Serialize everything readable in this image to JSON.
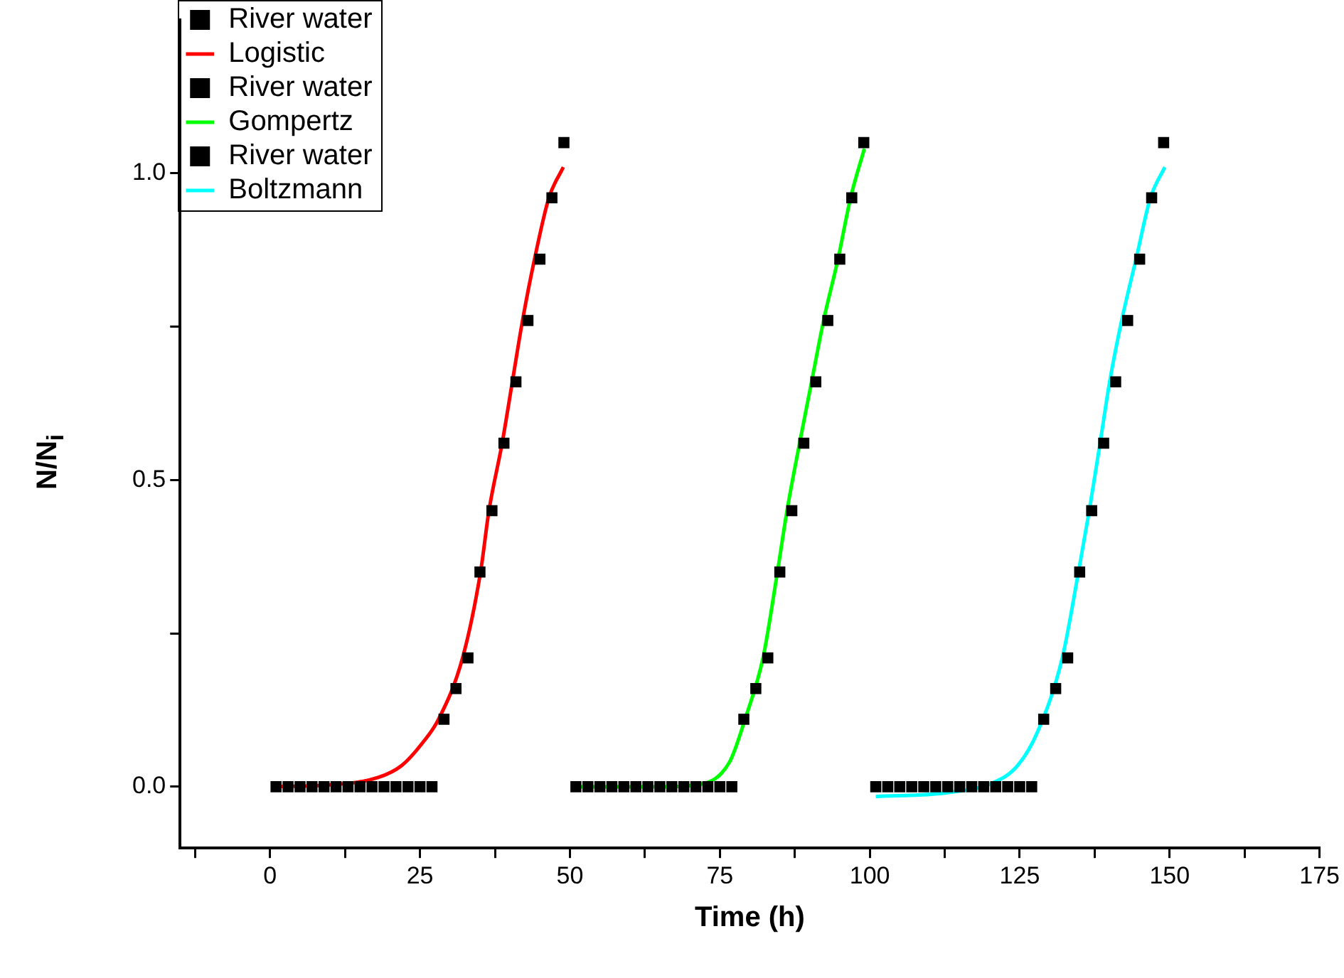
{
  "chart_data": {
    "type": "scatter",
    "xlabel": "Time (h)",
    "ylabel": "N/N$_{i}$",
    "xlim": [
      -15,
      175
    ],
    "ylim": [
      -0.1,
      1.25
    ],
    "xticks": [
      {
        "value": -12.5,
        "label": null
      },
      0,
      {
        "value": 12.5,
        "label": null
      },
      25,
      {
        "value": 37.5,
        "label": null
      },
      50,
      {
        "value": 62.5,
        "label": null
      },
      75,
      {
        "value": 87.5,
        "label": null
      },
      100,
      {
        "value": 112.5,
        "label": null
      },
      125,
      {
        "value": 137.5,
        "label": null
      },
      150,
      {
        "value": 162.5,
        "label": null
      },
      175
    ],
    "yticks": [
      {
        "value": 0,
        "label": "0.0"
      },
      {
        "value": 0.25,
        "label": null
      },
      {
        "value": 0.5,
        "label": "0.5"
      },
      {
        "value": 0.75,
        "label": null
      },
      {
        "value": 1,
        "label": "1.0"
      }
    ],
    "grid": false,
    "legend": "top left",
    "line_style": "solid",
    "series": [
      {
        "type": "scatter",
        "marker": "square",
        "name": "River water",
        "color": "#000000",
        "x": [
          1,
          3,
          5,
          7,
          9,
          11,
          13,
          15,
          17,
          19,
          21,
          23,
          25,
          27,
          29,
          31,
          33,
          35,
          37,
          39,
          41,
          43,
          45,
          47,
          49
        ],
        "values": [
          0,
          0,
          0,
          0,
          0,
          0,
          0,
          0,
          0,
          0,
          0,
          0,
          0,
          0,
          0.11,
          0.16,
          0.21,
          0.35,
          0.45,
          0.56,
          0.66,
          0.76,
          0.86,
          0.96,
          1.05
        ]
      },
      {
        "type": "line",
        "name": "Logistic",
        "color": "#ff0000",
        "x": [
          1,
          10,
          18,
          22,
          25.3,
          28.1,
          32.1,
          35.1,
          36.5,
          38.7,
          40.4,
          42.1,
          44.1,
          46.5,
          48.9
        ],
        "values": [
          0,
          0.003,
          0.015,
          0.035,
          0.07,
          0.11,
          0.21,
          0.35,
          0.45,
          0.56,
          0.66,
          0.76,
          0.86,
          0.96,
          1.01
        ]
      },
      {
        "type": "scatter",
        "marker": "square",
        "name": "River water",
        "color": "#000000",
        "x": [
          51,
          53,
          55,
          57,
          59,
          61,
          63,
          65,
          67,
          69,
          71,
          73,
          75,
          77,
          79,
          81,
          83,
          85,
          87,
          89,
          91,
          93,
          95,
          97,
          99
        ],
        "values": [
          0,
          0,
          0,
          0,
          0,
          0,
          0,
          0,
          0,
          0,
          0,
          0,
          0,
          0,
          0.11,
          0.16,
          0.21,
          0.35,
          0.45,
          0.56,
          0.66,
          0.76,
          0.86,
          0.96,
          1.05
        ]
      },
      {
        "type": "line",
        "name": "Gompertz",
        "color": "#00ff00",
        "x": [
          51,
          65,
          71.7,
          76.6,
          79.2,
          82.2,
          84.6,
          86.2,
          88.3,
          90.3,
          92.3,
          94.7,
          96.8,
          99.1
        ],
        "values": [
          0,
          0,
          0.004,
          0.04,
          0.11,
          0.21,
          0.35,
          0.45,
          0.56,
          0.66,
          0.76,
          0.86,
          0.96,
          1.04
        ]
      },
      {
        "type": "scatter",
        "marker": "square",
        "name": "River water",
        "color": "#000000",
        "x": [
          101,
          103,
          105,
          107,
          109,
          111,
          113,
          115,
          117,
          119,
          121,
          123,
          125,
          127,
          129,
          131,
          133,
          135,
          137,
          139,
          141,
          143,
          145,
          147,
          149
        ],
        "values": [
          0,
          0,
          0,
          0,
          0,
          0,
          0,
          0,
          0,
          0,
          0,
          0,
          0,
          0,
          0.11,
          0.16,
          0.21,
          0.35,
          0.45,
          0.56,
          0.66,
          0.76,
          0.86,
          0.96,
          1.05
        ]
      },
      {
        "type": "line",
        "name": "Boltzmann",
        "color": "#00ffff",
        "x": [
          101,
          112.7,
          120.7,
          124.7,
          128,
          132.1,
          134.8,
          136.6,
          138.4,
          140,
          142,
          144.4,
          146.8,
          149.2
        ],
        "values": [
          -0.016,
          -0.01,
          0.007,
          0.035,
          0.09,
          0.21,
          0.35,
          0.45,
          0.56,
          0.66,
          0.76,
          0.86,
          0.96,
          1.01
        ]
      }
    ]
  }
}
